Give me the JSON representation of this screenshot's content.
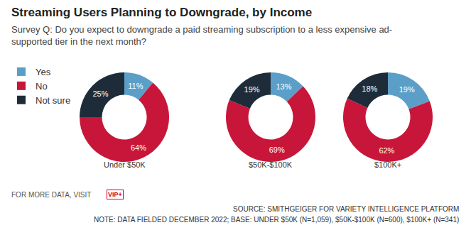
{
  "title": "Streaming Users Planning to Downgrade, by Income",
  "subtitle": "Survey Q: Do you expect to downgrade a paid streaming subscription to a less expensive ad-supported tier in the next month?",
  "footer": {
    "more_data": "FOR MORE DATA, VISIT",
    "badge": "VIP+",
    "source": "SOURCE: SMITHGEIGER FOR VARIETY INTELLIGENCE PLATFORM",
    "note": "NOTE: DATA FIELDED DECEMBER 2022; BASE: UNDER $50K (N=1,059), $50K-$100K (N=600), $100K+ (N=341)"
  },
  "chart_data": [
    {
      "type": "pie",
      "title": "Under $50K",
      "categories": [
        "Yes",
        "No",
        "Not sure"
      ],
      "values": [
        11,
        64,
        25
      ],
      "value_labels": [
        "11%",
        "64%",
        "25%"
      ],
      "colors": [
        "#5b9fc8",
        "#c8163a",
        "#1e2c3a"
      ],
      "data_labels": true,
      "legend": "top-left"
    },
    {
      "type": "pie",
      "title": "$50K-$100K",
      "categories": [
        "Yes",
        "No",
        "Not sure"
      ],
      "values": [
        13,
        69,
        19
      ],
      "value_labels": [
        "13%",
        "69%",
        "19%"
      ],
      "colors": [
        "#5b9fc8",
        "#c8163a",
        "#1e2c3a"
      ],
      "data_labels": true
    },
    {
      "type": "pie",
      "title": "$100K+",
      "categories": [
        "Yes",
        "No",
        "Not sure"
      ],
      "values": [
        19,
        62,
        18
      ],
      "value_labels": [
        "19%",
        "62%",
        "18%"
      ],
      "colors": [
        "#5b9fc8",
        "#c8163a",
        "#1e2c3a"
      ],
      "data_labels": true
    }
  ]
}
